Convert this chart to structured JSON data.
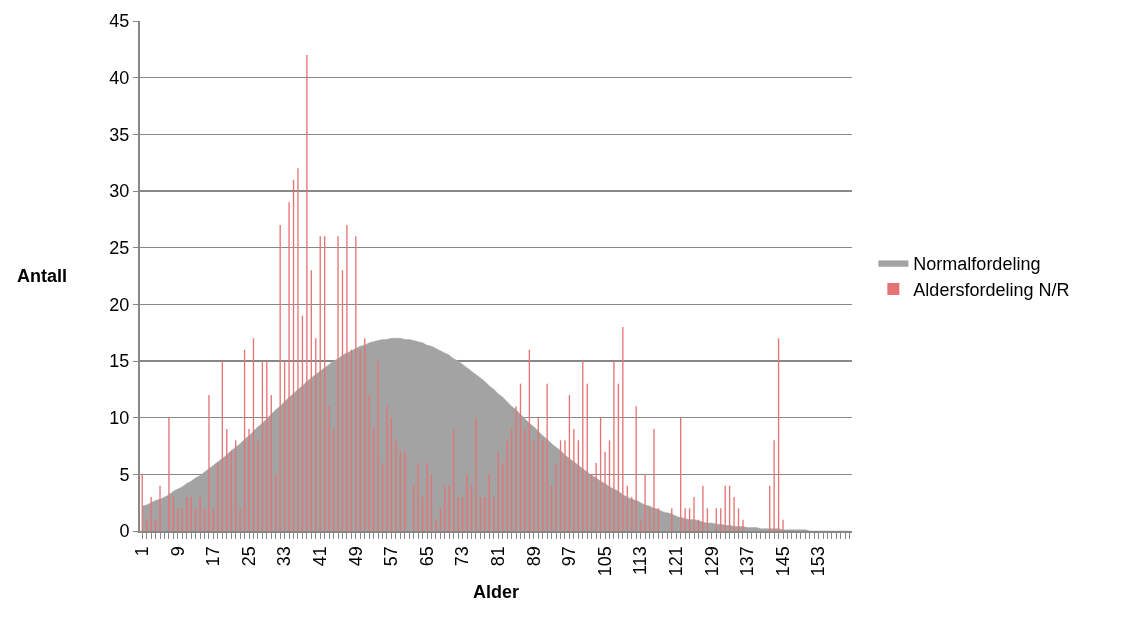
{
  "chart_data": {
    "type": "bar",
    "xlabel": "Alder",
    "ylabel": "Antall",
    "categories": [
      "1",
      null,
      null,
      null,
      null,
      null,
      null,
      null,
      "9",
      null,
      null,
      null,
      null,
      null,
      null,
      null,
      "17",
      null,
      null,
      null,
      null,
      null,
      null,
      null,
      "25",
      null,
      null,
      null,
      null,
      null,
      null,
      null,
      "33",
      null,
      null,
      null,
      null,
      null,
      null,
      null,
      "41",
      null,
      null,
      null,
      null,
      null,
      null,
      null,
      "49",
      null,
      null,
      null,
      null,
      null,
      null,
      null,
      "57",
      null,
      null,
      null,
      null,
      null,
      null,
      null,
      "65",
      null,
      null,
      null,
      null,
      null,
      null,
      null,
      "73",
      null,
      null,
      null,
      null,
      null,
      null,
      null,
      "81",
      null,
      null,
      null,
      null,
      null,
      null,
      null,
      "89",
      null,
      null,
      null,
      null,
      null,
      null,
      null,
      "97",
      null,
      null,
      null,
      null,
      null,
      null,
      null,
      "105",
      null,
      null,
      null,
      null,
      null,
      null,
      null,
      "113",
      null,
      null,
      null,
      null,
      null,
      null,
      null,
      "121",
      null,
      null,
      null,
      null,
      null,
      null,
      null,
      "129",
      null,
      null,
      null,
      null,
      null,
      null,
      null,
      "137",
      null,
      null,
      null,
      null,
      null,
      null,
      null,
      "145",
      null,
      null,
      null,
      null,
      null,
      null,
      null,
      "153",
      null,
      null,
      null,
      null,
      null,
      null,
      null
    ],
    "series": [
      {
        "name": "Normalfordeling",
        "type": "area",
        "color": "#a3a3a3",
        "values": [
          2.2,
          2.3,
          2.5,
          2.7,
          2.8,
          3.0,
          3.2,
          3.5,
          3.7,
          3.9,
          4.2,
          4.4,
          4.7,
          4.9,
          5.2,
          5.5,
          5.8,
          6.1,
          6.4,
          6.7,
          7.1,
          7.4,
          7.7,
          8.1,
          8.4,
          8.8,
          9.2,
          9.5,
          9.9,
          10.3,
          10.7,
          11.0,
          11.4,
          11.8,
          12.1,
          12.5,
          12.8,
          13.2,
          13.5,
          13.8,
          14.1,
          14.4,
          14.7,
          15.0,
          15.2,
          15.5,
          15.7,
          15.9,
          16.1,
          16.3,
          16.4,
          16.6,
          16.7,
          16.8,
          16.9,
          16.9,
          17.0,
          17.0,
          17.0,
          16.9,
          16.9,
          16.8,
          16.7,
          16.6,
          16.4,
          16.3,
          16.1,
          15.9,
          15.7,
          15.5,
          15.2,
          15.0,
          14.7,
          14.4,
          14.1,
          13.8,
          13.5,
          13.2,
          12.8,
          12.5,
          12.1,
          11.8,
          11.4,
          11.0,
          10.7,
          10.3,
          9.9,
          9.5,
          9.2,
          8.8,
          8.4,
          8.1,
          7.7,
          7.4,
          7.1,
          6.7,
          6.4,
          6.1,
          5.8,
          5.5,
          5.2,
          4.9,
          4.7,
          4.4,
          4.2,
          3.9,
          3.7,
          3.5,
          3.2,
          3.0,
          2.8,
          2.7,
          2.5,
          2.3,
          2.2,
          2.0,
          1.9,
          1.7,
          1.6,
          1.5,
          1.3,
          1.2,
          1.1,
          1.0,
          1.0,
          0.9,
          0.8,
          0.7,
          0.7,
          0.6,
          0.6,
          0.5,
          0.5,
          0.4,
          0.4,
          0.4,
          0.3,
          0.3,
          0.3,
          0.2,
          0.2,
          0.2,
          0.2,
          0.2,
          0.1,
          0.1,
          0.1,
          0.1,
          0.1,
          0.1,
          0,
          0,
          0,
          0,
          0,
          0,
          0,
          0,
          0,
          0
        ]
      },
      {
        "name": "Aldersfordeling N/R",
        "type": "bar",
        "color": "#e57373",
        "values": [
          5,
          1,
          3,
          1,
          4,
          0,
          10,
          3,
          2,
          2,
          3,
          3,
          2,
          3,
          2,
          12,
          2,
          6,
          15,
          9,
          7,
          8,
          2,
          16,
          9,
          17,
          8,
          15,
          15,
          12,
          5,
          27,
          15,
          29,
          31,
          32,
          19,
          42,
          23,
          17,
          26,
          26,
          11,
          9,
          26,
          23,
          27,
          16,
          26,
          16,
          17,
          12,
          9,
          15,
          6,
          11,
          10,
          8,
          7,
          7,
          0,
          4,
          6,
          3,
          6,
          5,
          1,
          2,
          4,
          4,
          9,
          3,
          3,
          5,
          4,
          10,
          3,
          3,
          5,
          3,
          7,
          6,
          8,
          9,
          11,
          13,
          9,
          16,
          8,
          10,
          8,
          13,
          4,
          6,
          8,
          8,
          12,
          9,
          8,
          15,
          13,
          5,
          6,
          10,
          7,
          8,
          15,
          13,
          18,
          4,
          3,
          11,
          1,
          5,
          2,
          9,
          2,
          0,
          0,
          2,
          0,
          10,
          2,
          2,
          3,
          1,
          4,
          2,
          0,
          2,
          2,
          4,
          4,
          3,
          2,
          1,
          0,
          0,
          0,
          0,
          0,
          4,
          8,
          17,
          1,
          0,
          0,
          0,
          0,
          0,
          0,
          0,
          0,
          0,
          0,
          0,
          0,
          0,
          0,
          0
        ]
      }
    ],
    "ylim": [
      0,
      45
    ],
    "yticks": [
      0,
      5,
      10,
      15,
      20,
      25,
      30,
      35,
      40,
      45
    ],
    "grid": "y",
    "legend": "right"
  }
}
